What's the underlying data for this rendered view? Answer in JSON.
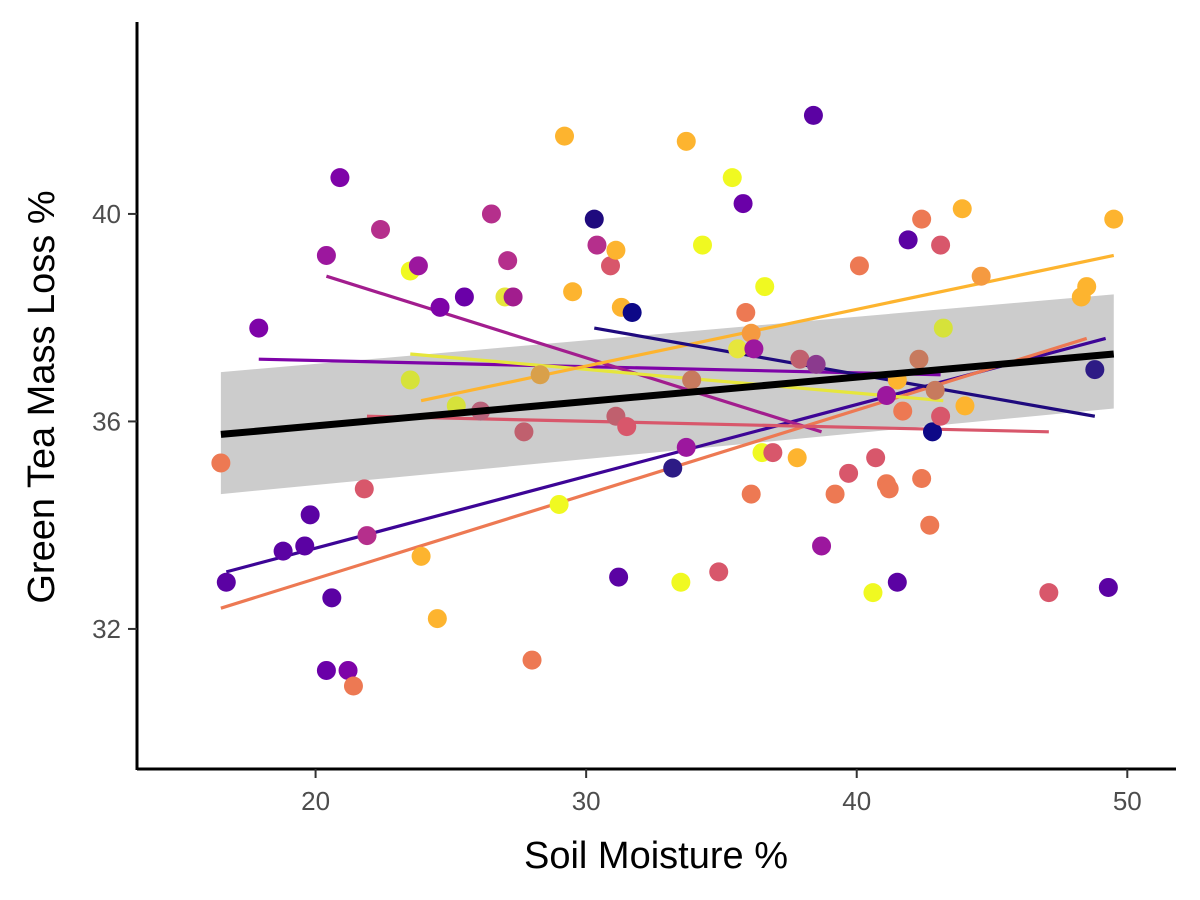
{
  "chart_data": {
    "type": "scatter",
    "title": "",
    "xlabel": "Soil Moisture %",
    "ylabel": "Green Tea Mass Loss %",
    "xlim": [
      13.4,
      51.8
    ],
    "ylim": [
      29.3,
      43.7
    ],
    "x_ticks": [
      "20",
      "30",
      "40",
      "50"
    ],
    "y_ticks": [
      "32",
      "36",
      "40"
    ],
    "grid": false,
    "legend": "none",
    "points": [
      {
        "x": 16.5,
        "y": 35.2,
        "color": "#ed7953"
      },
      {
        "x": 16.7,
        "y": 32.9,
        "color": "#5b02a3"
      },
      {
        "x": 17.9,
        "y": 37.8,
        "color": "#7e03a8"
      },
      {
        "x": 18.8,
        "y": 33.5,
        "color": "#5b02a3"
      },
      {
        "x": 19.6,
        "y": 33.6,
        "color": "#5b02a3"
      },
      {
        "x": 19.8,
        "y": 34.2,
        "color": "#5b02a3"
      },
      {
        "x": 20.4,
        "y": 31.2,
        "color": "#6a00a8"
      },
      {
        "x": 20.4,
        "y": 39.2,
        "color": "#9c179e"
      },
      {
        "x": 20.6,
        "y": 32.6,
        "color": "#5b02a3"
      },
      {
        "x": 20.9,
        "y": 40.7,
        "color": "#7e03a8"
      },
      {
        "x": 21.2,
        "y": 31.2,
        "color": "#7e03a8"
      },
      {
        "x": 21.4,
        "y": 30.9,
        "color": "#ed7953"
      },
      {
        "x": 21.8,
        "y": 34.7,
        "color": "#d8576b"
      },
      {
        "x": 21.9,
        "y": 33.8,
        "color": "#b52f8c"
      },
      {
        "x": 22.4,
        "y": 39.7,
        "color": "#b52f8c"
      },
      {
        "x": 23.5,
        "y": 38.9,
        "color": "#f0f921"
      },
      {
        "x": 23.5,
        "y": 36.8,
        "color": "#d6e23a"
      },
      {
        "x": 23.8,
        "y": 39.0,
        "color": "#9c179e"
      },
      {
        "x": 23.9,
        "y": 33.4,
        "color": "#fdb42f"
      },
      {
        "x": 24.5,
        "y": 32.2,
        "color": "#fdb42f"
      },
      {
        "x": 24.6,
        "y": 38.2,
        "color": "#7e03a8"
      },
      {
        "x": 25.2,
        "y": 36.3,
        "color": "#d6e23a"
      },
      {
        "x": 25.5,
        "y": 38.4,
        "color": "#6a00a8"
      },
      {
        "x": 26.1,
        "y": 36.2,
        "color": "#b8627a"
      },
      {
        "x": 26.5,
        "y": 40.0,
        "color": "#b52f8c"
      },
      {
        "x": 27.0,
        "y": 38.4,
        "color": "#e6e63c"
      },
      {
        "x": 27.1,
        "y": 39.1,
        "color": "#b52f8c"
      },
      {
        "x": 27.3,
        "y": 38.4,
        "color": "#a21d8e"
      },
      {
        "x": 27.7,
        "y": 35.8,
        "color": "#c0606e"
      },
      {
        "x": 28.0,
        "y": 31.4,
        "color": "#ed7953"
      },
      {
        "x": 28.3,
        "y": 36.9,
        "color": "#d9a04a"
      },
      {
        "x": 29.0,
        "y": 34.4,
        "color": "#f0f921"
      },
      {
        "x": 29.2,
        "y": 41.5,
        "color": "#fdb42f"
      },
      {
        "x": 29.5,
        "y": 38.5,
        "color": "#fdb42f"
      },
      {
        "x": 30.3,
        "y": 39.9,
        "color": "#1f0a7e"
      },
      {
        "x": 30.4,
        "y": 39.4,
        "color": "#b52f8c"
      },
      {
        "x": 30.9,
        "y": 39.0,
        "color": "#d8576b"
      },
      {
        "x": 31.1,
        "y": 39.3,
        "color": "#fdb42f"
      },
      {
        "x": 31.1,
        "y": 36.1,
        "color": "#c0606e"
      },
      {
        "x": 31.2,
        "y": 33.0,
        "color": "#5b02a3"
      },
      {
        "x": 31.3,
        "y": 38.2,
        "color": "#fdb42f"
      },
      {
        "x": 31.5,
        "y": 35.9,
        "color": "#d8576b"
      },
      {
        "x": 31.7,
        "y": 38.1,
        "color": "#0d0887"
      },
      {
        "x": 33.2,
        "y": 35.1,
        "color": "#2d1b85"
      },
      {
        "x": 33.5,
        "y": 32.9,
        "color": "#f0f921"
      },
      {
        "x": 33.7,
        "y": 41.4,
        "color": "#fdb42f"
      },
      {
        "x": 33.7,
        "y": 35.5,
        "color": "#9c179e"
      },
      {
        "x": 33.9,
        "y": 36.8,
        "color": "#c77a5e"
      },
      {
        "x": 34.3,
        "y": 39.4,
        "color": "#f0f921"
      },
      {
        "x": 34.9,
        "y": 33.1,
        "color": "#d8576b"
      },
      {
        "x": 35.4,
        "y": 40.7,
        "color": "#f0f921"
      },
      {
        "x": 35.6,
        "y": 37.4,
        "color": "#e6e63c"
      },
      {
        "x": 35.8,
        "y": 40.2,
        "color": "#6a00a8"
      },
      {
        "x": 35.9,
        "y": 38.1,
        "color": "#ed7953"
      },
      {
        "x": 36.1,
        "y": 34.6,
        "color": "#ed7953"
      },
      {
        "x": 36.1,
        "y": 37.7,
        "color": "#f59a40"
      },
      {
        "x": 36.2,
        "y": 37.4,
        "color": "#9c179e"
      },
      {
        "x": 36.5,
        "y": 35.4,
        "color": "#f0f921"
      },
      {
        "x": 36.6,
        "y": 38.6,
        "color": "#f0f921"
      },
      {
        "x": 36.9,
        "y": 35.4,
        "color": "#d8576b"
      },
      {
        "x": 37.8,
        "y": 35.3,
        "color": "#fdb42f"
      },
      {
        "x": 37.9,
        "y": 37.2,
        "color": "#c0606e"
      },
      {
        "x": 38.4,
        "y": 41.9,
        "color": "#5b02a3"
      },
      {
        "x": 38.5,
        "y": 37.1,
        "color": "#8b3a8e"
      },
      {
        "x": 38.7,
        "y": 33.6,
        "color": "#9c179e"
      },
      {
        "x": 39.2,
        "y": 34.6,
        "color": "#ed7953"
      },
      {
        "x": 39.7,
        "y": 35.0,
        "color": "#d8576b"
      },
      {
        "x": 40.1,
        "y": 39.0,
        "color": "#ed7953"
      },
      {
        "x": 40.6,
        "y": 32.7,
        "color": "#f0f921"
      },
      {
        "x": 40.7,
        "y": 35.3,
        "color": "#d8576b"
      },
      {
        "x": 41.1,
        "y": 36.5,
        "color": "#9c179e"
      },
      {
        "x": 41.1,
        "y": 34.8,
        "color": "#ed7953"
      },
      {
        "x": 41.2,
        "y": 34.7,
        "color": "#ed7953"
      },
      {
        "x": 41.5,
        "y": 32.9,
        "color": "#5b02a3"
      },
      {
        "x": 41.5,
        "y": 36.8,
        "color": "#fdb42f"
      },
      {
        "x": 41.7,
        "y": 36.2,
        "color": "#ed7953"
      },
      {
        "x": 41.9,
        "y": 39.5,
        "color": "#5b02a3"
      },
      {
        "x": 42.3,
        "y": 37.2,
        "color": "#c77a5e"
      },
      {
        "x": 42.4,
        "y": 39.9,
        "color": "#ed7953"
      },
      {
        "x": 42.4,
        "y": 34.9,
        "color": "#ed7953"
      },
      {
        "x": 42.7,
        "y": 34.0,
        "color": "#ed7953"
      },
      {
        "x": 42.8,
        "y": 35.8,
        "color": "#0d0887"
      },
      {
        "x": 42.9,
        "y": 36.6,
        "color": "#c77a5e"
      },
      {
        "x": 43.1,
        "y": 39.4,
        "color": "#d8576b"
      },
      {
        "x": 43.1,
        "y": 36.1,
        "color": "#d8576b"
      },
      {
        "x": 43.2,
        "y": 37.8,
        "color": "#d6e23a"
      },
      {
        "x": 43.9,
        "y": 40.1,
        "color": "#fdb42f"
      },
      {
        "x": 44.0,
        "y": 36.3,
        "color": "#fdb42f"
      },
      {
        "x": 44.6,
        "y": 38.8,
        "color": "#f59a40"
      },
      {
        "x": 47.1,
        "y": 32.7,
        "color": "#d8576b"
      },
      {
        "x": 48.3,
        "y": 38.4,
        "color": "#fdb42f"
      },
      {
        "x": 48.5,
        "y": 38.6,
        "color": "#fdb42f"
      },
      {
        "x": 48.8,
        "y": 37.0,
        "color": "#2d1b85"
      },
      {
        "x": 49.3,
        "y": 32.8,
        "color": "#5b02a3"
      },
      {
        "x": 49.5,
        "y": 39.9,
        "color": "#fdb42f"
      }
    ],
    "group_lines": [
      {
        "x": [
          16.7,
          49.2
        ],
        "y": [
          33.1,
          37.6
        ],
        "color": "#3d0596"
      },
      {
        "x": [
          16.5,
          48.5
        ],
        "y": [
          32.4,
          37.6
        ],
        "color": "#ed7953"
      },
      {
        "x": [
          17.9,
          43.1
        ],
        "y": [
          37.2,
          36.9
        ],
        "color": "#7e03a8"
      },
      {
        "x": [
          20.4,
          38.7
        ],
        "y": [
          38.8,
          35.8
        ],
        "color": "#a21d8e"
      },
      {
        "x": [
          21.9,
          47.1
        ],
        "y": [
          36.1,
          35.8
        ],
        "color": "#d8576b"
      },
      {
        "x": [
          23.5,
          43.2
        ],
        "y": [
          37.3,
          36.4
        ],
        "color": "#e6e63c"
      },
      {
        "x": [
          23.9,
          49.5
        ],
        "y": [
          36.4,
          39.2
        ],
        "color": "#fdb42f"
      },
      {
        "x": [
          30.3,
          48.8
        ],
        "y": [
          37.8,
          36.1
        ],
        "color": "#1f0a7e"
      }
    ],
    "overall_fit": {
      "x": [
        16.5,
        49.5
      ],
      "y": [
        35.75,
        37.3
      ],
      "color": "#000000"
    },
    "confidence_band": {
      "x": [
        16.5,
        49.5
      ],
      "upper": [
        36.95,
        38.45
      ],
      "lower": [
        34.6,
        36.25
      ],
      "color": "#cccccc"
    }
  }
}
